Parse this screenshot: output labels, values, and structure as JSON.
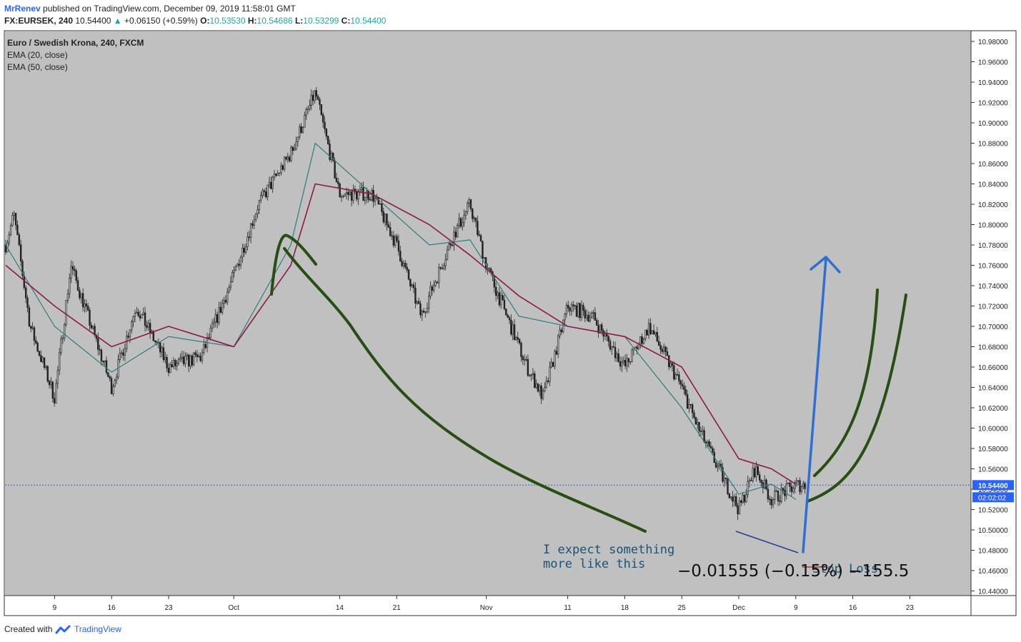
{
  "header": {
    "author": "MrRenev",
    "published": "published on TradingView.com, December 09, 2019 11:58:01 GMT",
    "symbol": "FX:EURSEK, 240",
    "last": "10.54400",
    "change": "+0.06150 (+0.59%)",
    "o_label": "O:",
    "o": "10.53530",
    "h_label": "H:",
    "h": "10.54686",
    "l_label": "L:",
    "l": "10.53299",
    "c_label": "C:",
    "c": "10.54400"
  },
  "footer": {
    "created_with": "Created with",
    "brand": "TradingView"
  },
  "colors": {
    "plot_bg": "#c0c0c0",
    "ema20": "#2e7d7d",
    "ema50": "#8b1a4a",
    "candle": "#222222",
    "drawing_green": "#274e13",
    "drawing_blue": "#2f6fd1",
    "wedge_line": "#1f3e8c",
    "note_text": "#1a5276",
    "price_tag": "#2962ff"
  },
  "chart_data": {
    "type": "candlestick",
    "title": "Euro / Swedish Krona, 240, FXCM",
    "series": [
      {
        "name": "EMA (20, close)",
        "type": "line",
        "x": [
          "Sep 3",
          "Sep 9",
          "Sep 16",
          "Sep 23",
          "Oct 1",
          "Oct 8",
          "Oct 11",
          "Oct 18",
          "Oct 25",
          "Oct 30",
          "Nov 5",
          "Nov 11",
          "Nov 18",
          "Nov 25",
          "Dec 2",
          "Dec 6",
          "Dec 9"
        ],
        "values": [
          10.78,
          10.7,
          10.655,
          10.69,
          10.68,
          10.78,
          10.88,
          10.83,
          10.78,
          10.785,
          10.71,
          10.7,
          10.69,
          10.62,
          10.535,
          10.545,
          10.53
        ]
      },
      {
        "name": "EMA (50, close)",
        "type": "line",
        "x": [
          "Sep 3",
          "Sep 9",
          "Sep 16",
          "Sep 23",
          "Oct 1",
          "Oct 8",
          "Oct 11",
          "Oct 18",
          "Oct 25",
          "Oct 30",
          "Nov 5",
          "Nov 11",
          "Nov 18",
          "Nov 25",
          "Dec 2",
          "Dec 6",
          "Dec 9"
        ],
        "values": [
          10.76,
          10.72,
          10.68,
          10.7,
          10.68,
          10.76,
          10.84,
          10.83,
          10.8,
          10.77,
          10.73,
          10.7,
          10.69,
          10.66,
          10.57,
          10.56,
          10.545
        ]
      }
    ],
    "price_path": {
      "x": [
        "Sep 3",
        "Sep 4",
        "Sep 6",
        "Sep 9",
        "Sep 11",
        "Sep 16",
        "Sep 19",
        "Sep 23",
        "Sep 27",
        "Oct 1",
        "Oct 4",
        "Oct 8",
        "Oct 11",
        "Oct 14",
        "Oct 18",
        "Oct 21",
        "Oct 24",
        "Oct 28",
        "Oct 30",
        "Nov 1",
        "Nov 6",
        "Nov 8",
        "Nov 11",
        "Nov 14",
        "Nov 18",
        "Nov 21",
        "Nov 25",
        "Nov 27",
        "Dec 2",
        "Dec 4",
        "Dec 6",
        "Dec 9"
      ],
      "close": [
        10.78,
        10.81,
        10.7,
        10.63,
        10.76,
        10.64,
        10.72,
        10.66,
        10.67,
        10.75,
        10.82,
        10.87,
        10.93,
        10.83,
        10.83,
        10.78,
        10.71,
        10.79,
        10.82,
        10.76,
        10.66,
        10.63,
        10.72,
        10.71,
        10.66,
        10.7,
        10.64,
        10.6,
        10.52,
        10.56,
        10.53,
        10.544
      ]
    },
    "y_ticks": [
      "10.98000",
      "10.96000",
      "10.94000",
      "10.92000",
      "10.90000",
      "10.88000",
      "10.86000",
      "10.84000",
      "10.82000",
      "10.80000",
      "10.78000",
      "10.76000",
      "10.74000",
      "10.72000",
      "10.70000",
      "10.68000",
      "10.66000",
      "10.64000",
      "10.62000",
      "10.60000",
      "10.58000",
      "10.56000",
      "10.54000",
      "10.52000",
      "10.50000",
      "10.48000",
      "10.46000",
      "10.44000"
    ],
    "ylim": [
      10.44,
      10.99
    ],
    "x_ticks": [
      "9",
      "16",
      "23",
      "Oct",
      "14",
      "21",
      "Nov",
      "11",
      "18",
      "25",
      "Dec",
      "9",
      "16",
      "23"
    ],
    "last_price": {
      "value": 10.544,
      "label": "10.54400",
      "countdown": "02:02:02"
    },
    "annotations": {
      "note": [
        "I expect something",
        "more like this"
      ],
      "measure": "−0.01555 (−0.15%) −155.5",
      "stop_label": "Stop Loss"
    },
    "grid": false,
    "legend_position": "top-left"
  }
}
